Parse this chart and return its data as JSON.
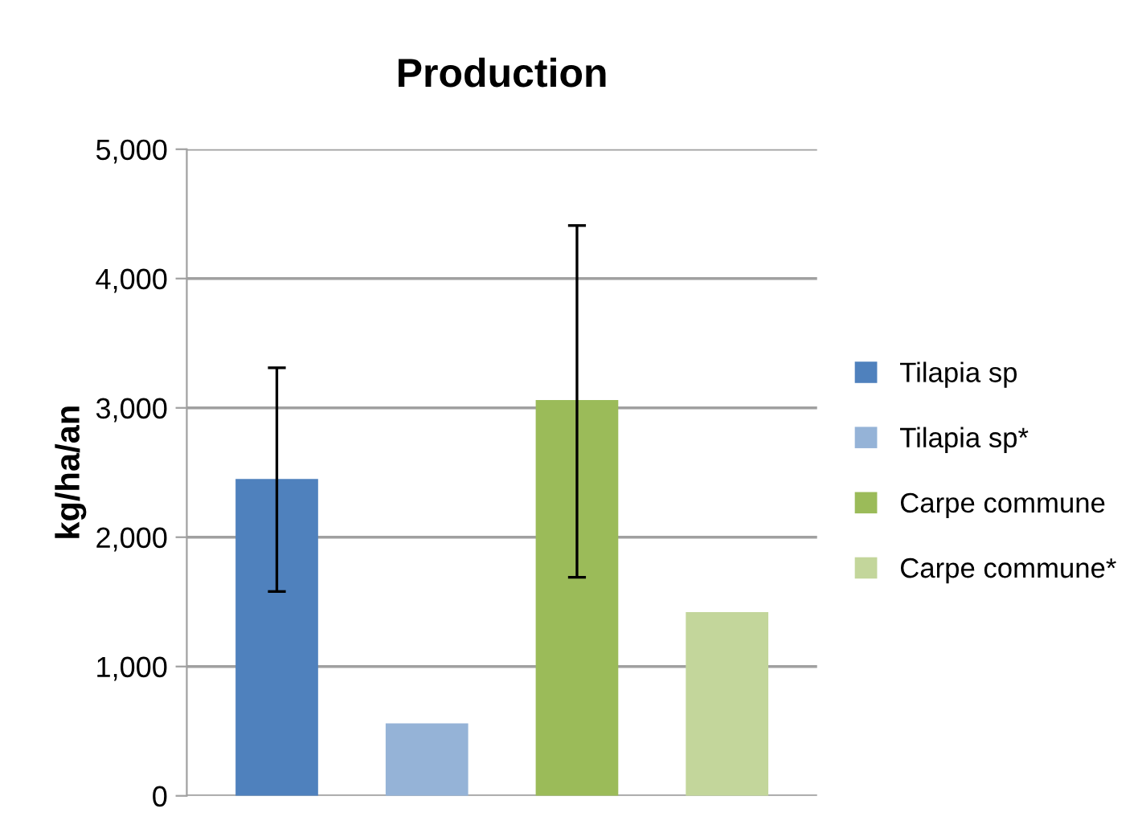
{
  "chart_data": {
    "type": "bar",
    "title": "Production",
    "ylabel": "kg/ha/an",
    "categories": [
      null,
      null,
      null,
      null
    ],
    "series": [
      {
        "name": "Tilapia sp",
        "color": "#4f81bd",
        "values": [
          2450,
          null,
          null,
          null
        ],
        "errors": [
          [
            1580,
            3310
          ],
          null,
          null,
          null
        ]
      },
      {
        "name": "Tilapia sp*",
        "color": "#95b3d7",
        "values": [
          null,
          560,
          null,
          null
        ]
      },
      {
        "name": "Carpe commune",
        "color": "#9bbb59",
        "values": [
          null,
          null,
          3060,
          null
        ],
        "errors": [
          null,
          null,
          [
            1690,
            4410
          ],
          null
        ]
      },
      {
        "name": "Carpe commune*",
        "color": "#c3d69b",
        "values": [
          null,
          null,
          null,
          1420
        ]
      }
    ],
    "ylim": [
      0,
      5000
    ],
    "yticks": [
      {
        "value": 0,
        "label": "0"
      },
      {
        "value": 1000,
        "label": "1,000"
      },
      {
        "value": 2000,
        "label": "2,000"
      },
      {
        "value": 3000,
        "label": "3,000"
      },
      {
        "value": 4000,
        "label": "4,000"
      },
      {
        "value": 5000,
        "label": "5,000"
      }
    ],
    "grid": "y",
    "legend": "right"
  }
}
